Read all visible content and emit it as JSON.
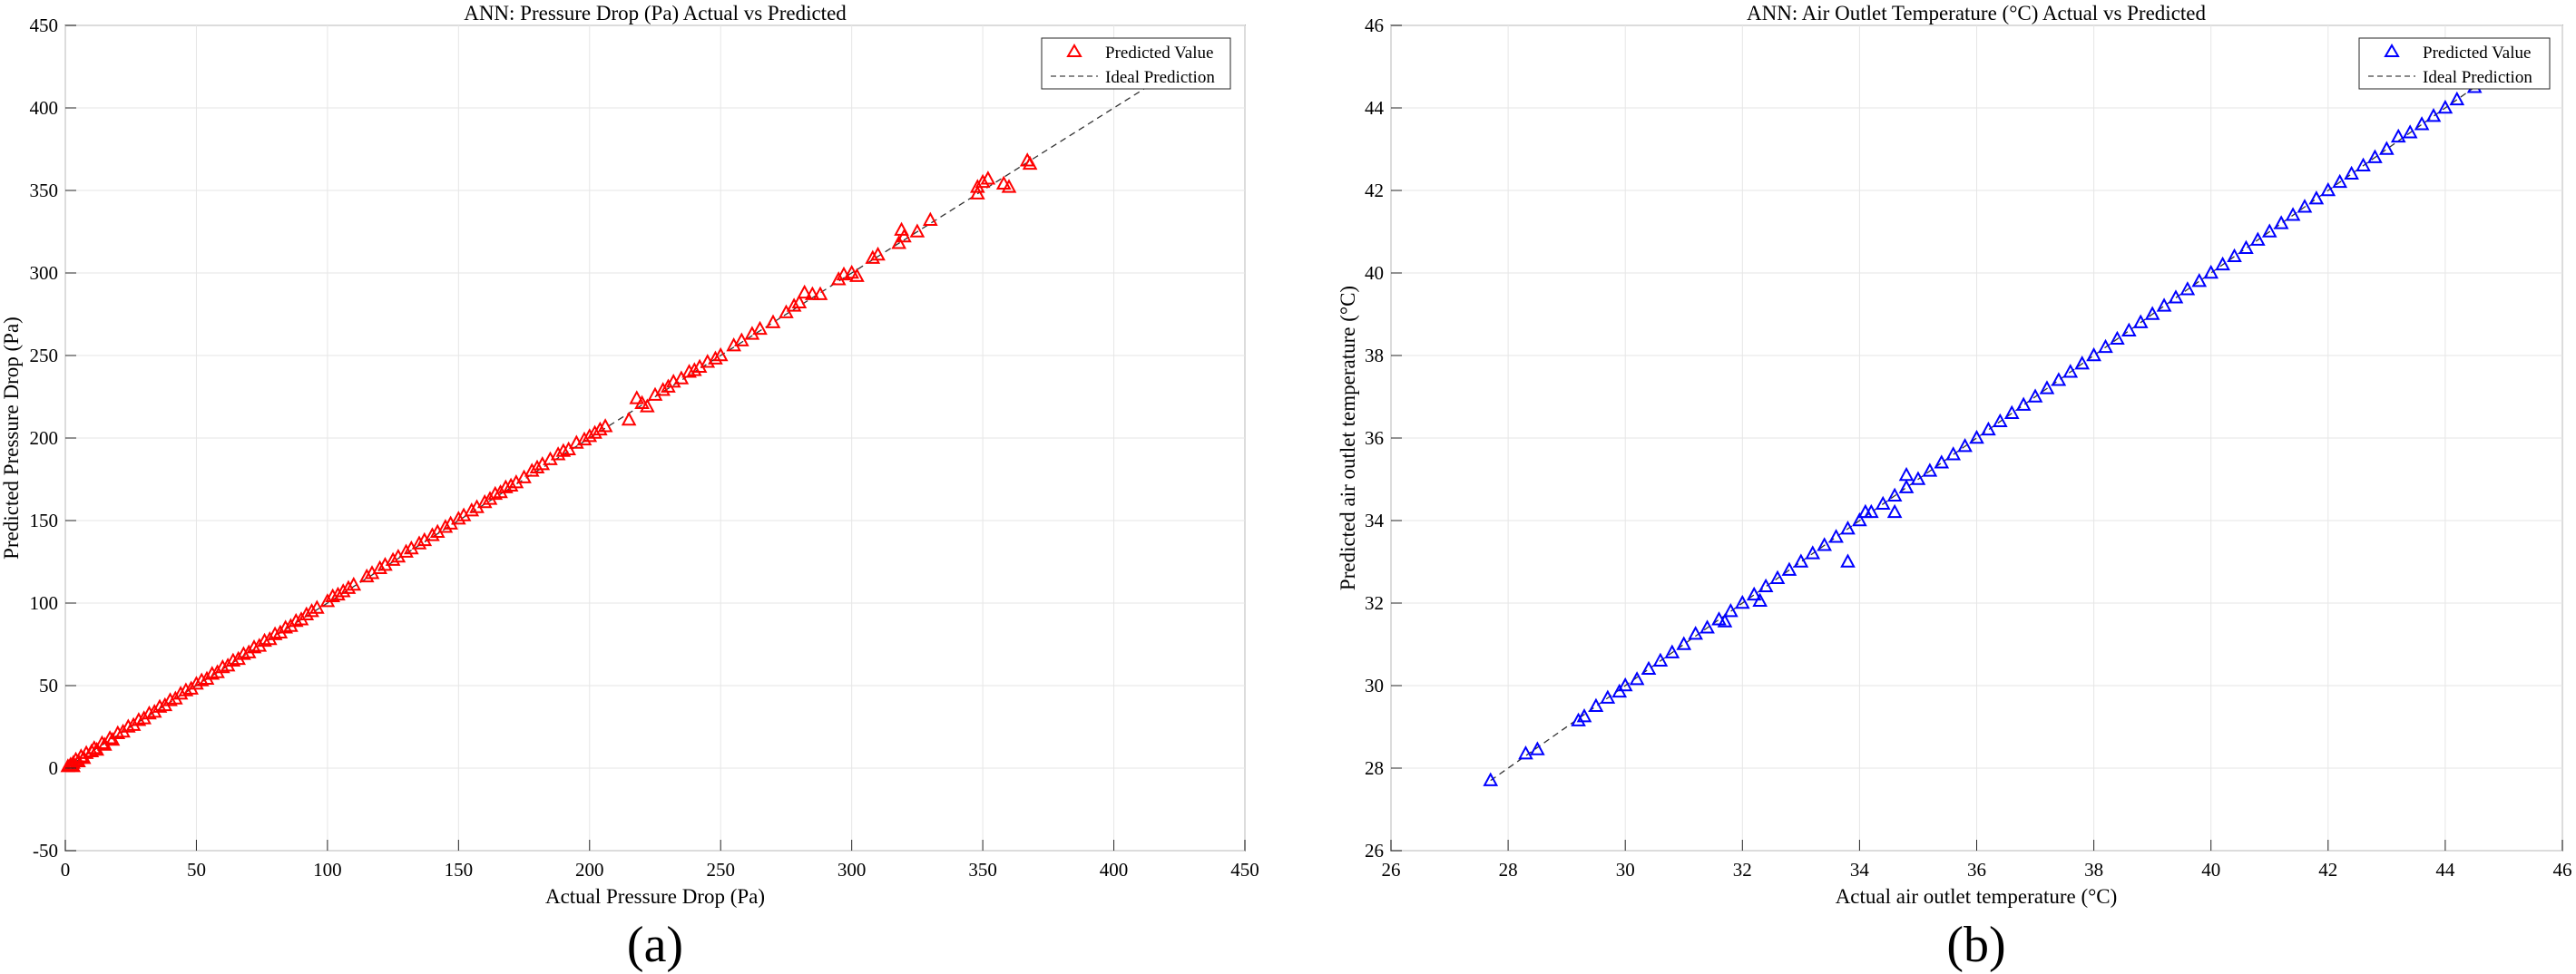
{
  "chart_data": [
    {
      "type": "scatter",
      "title": "ANN: Pressure Drop (Pa) Actual vs Predicted",
      "xlabel": "Actual Pressure Drop (Pa)",
      "ylabel": "Predicted Pressure Drop (Pa)",
      "xlim": [
        0,
        450
      ],
      "ylim": [
        -50,
        450
      ],
      "xticks": [
        0,
        50,
        100,
        150,
        200,
        250,
        300,
        350,
        400,
        450
      ],
      "yticks": [
        -50,
        0,
        50,
        100,
        150,
        200,
        250,
        300,
        350,
        400,
        450
      ],
      "grid": true,
      "legend_position": "top-right",
      "legend": [
        "Predicted Value",
        "Ideal Prediction"
      ],
      "panel_label": "(a)",
      "marker_color": "#ff0000",
      "series": [
        {
          "name": "Predicted Value",
          "marker": "triangle",
          "points": [
            [
              1,
              1
            ],
            [
              2,
              2
            ],
            [
              3,
              3
            ],
            [
              3,
              1
            ],
            [
              4,
              5
            ],
            [
              5,
              4
            ],
            [
              6,
              7
            ],
            [
              7,
              6
            ],
            [
              8,
              9
            ],
            [
              10,
              10
            ],
            [
              11,
              12
            ],
            [
              12,
              11
            ],
            [
              14,
              15
            ],
            [
              15,
              14
            ],
            [
              17,
              18
            ],
            [
              18,
              17
            ],
            [
              20,
              21
            ],
            [
              22,
              22
            ],
            [
              24,
              25
            ],
            [
              26,
              26
            ],
            [
              28,
              29
            ],
            [
              30,
              30
            ],
            [
              32,
              33
            ],
            [
              34,
              34
            ],
            [
              36,
              37
            ],
            [
              38,
              38
            ],
            [
              40,
              41
            ],
            [
              42,
              42
            ],
            [
              44,
              45
            ],
            [
              46,
              47
            ],
            [
              48,
              48
            ],
            [
              50,
              51
            ],
            [
              52,
              53
            ],
            [
              54,
              54
            ],
            [
              56,
              57
            ],
            [
              58,
              58
            ],
            [
              60,
              61
            ],
            [
              62,
              62
            ],
            [
              64,
              65
            ],
            [
              66,
              66
            ],
            [
              68,
              69
            ],
            [
              70,
              70
            ],
            [
              72,
              73
            ],
            [
              74,
              74
            ],
            [
              76,
              77
            ],
            [
              78,
              78
            ],
            [
              80,
              81
            ],
            [
              82,
              82
            ],
            [
              84,
              85
            ],
            [
              86,
              86
            ],
            [
              88,
              89
            ],
            [
              90,
              90
            ],
            [
              92,
              93
            ],
            [
              94,
              95
            ],
            [
              96,
              97
            ],
            [
              100,
              101
            ],
            [
              102,
              104
            ],
            [
              104,
              105
            ],
            [
              106,
              107
            ],
            [
              108,
              109
            ],
            [
              110,
              111
            ],
            [
              115,
              116
            ],
            [
              117,
              118
            ],
            [
              120,
              121
            ],
            [
              122,
              123
            ],
            [
              125,
              126
            ],
            [
              127,
              128
            ],
            [
              130,
              131
            ],
            [
              132,
              133
            ],
            [
              135,
              136
            ],
            [
              137,
              138
            ],
            [
              140,
              141
            ],
            [
              142,
              143
            ],
            [
              145,
              146
            ],
            [
              147,
              148
            ],
            [
              150,
              151
            ],
            [
              152,
              153
            ],
            [
              155,
              156
            ],
            [
              157,
              158
            ],
            [
              160,
              161
            ],
            [
              162,
              163
            ],
            [
              164,
              166
            ],
            [
              166,
              167
            ],
            [
              168,
              170
            ],
            [
              170,
              171
            ],
            [
              172,
              173
            ],
            [
              175,
              176
            ],
            [
              178,
              180
            ],
            [
              180,
              182
            ],
            [
              182,
              184
            ],
            [
              185,
              187
            ],
            [
              188,
              190
            ],
            [
              190,
              192
            ],
            [
              192,
              193
            ],
            [
              195,
              197
            ],
            [
              198,
              199
            ],
            [
              200,
              201
            ],
            [
              202,
              203
            ],
            [
              204,
              205
            ],
            [
              206,
              207
            ],
            [
              215,
              211
            ],
            [
              218,
              224
            ],
            [
              220,
              221
            ],
            [
              222,
              219
            ],
            [
              225,
              226
            ],
            [
              228,
              229
            ],
            [
              230,
              231
            ],
            [
              232,
              234
            ],
            [
              235,
              236
            ],
            [
              238,
              240
            ],
            [
              240,
              241
            ],
            [
              242,
              243
            ],
            [
              245,
              246
            ],
            [
              248,
              248
            ],
            [
              250,
              250
            ],
            [
              255,
              256
            ],
            [
              258,
              259
            ],
            [
              262,
              263
            ],
            [
              265,
              266
            ],
            [
              270,
              270
            ],
            [
              275,
              276
            ],
            [
              278,
              280
            ],
            [
              280,
              282
            ],
            [
              282,
              288
            ],
            [
              285,
              287
            ],
            [
              288,
              287
            ],
            [
              295,
              296
            ],
            [
              297,
              299
            ],
            [
              300,
              300
            ],
            [
              302,
              298
            ],
            [
              308,
              309
            ],
            [
              310,
              311
            ],
            [
              318,
              318
            ],
            [
              319,
              326
            ],
            [
              320,
              322
            ],
            [
              325,
              325
            ],
            [
              330,
              332
            ],
            [
              348,
              348
            ],
            [
              348,
              352
            ],
            [
              350,
              355
            ],
            [
              352,
              357
            ],
            [
              358,
              354
            ],
            [
              360,
              352
            ],
            [
              367,
              368
            ],
            [
              368,
              366
            ],
            [
              415,
              415
            ]
          ]
        },
        {
          "name": "Ideal Prediction",
          "line": "dashed",
          "points": [
            [
              0,
              0
            ],
            [
              420,
              420
            ]
          ]
        }
      ]
    },
    {
      "type": "scatter",
      "title": "ANN: Air Outlet Temperature (°C) Actual vs Predicted",
      "xlabel": "Actual air outlet temperature (°C)",
      "ylabel": "Predicted air outlet temperature (°C)",
      "xlim": [
        26,
        46
      ],
      "ylim": [
        26,
        46
      ],
      "xticks": [
        26,
        28,
        30,
        32,
        34,
        36,
        38,
        40,
        42,
        44,
        46
      ],
      "yticks": [
        26,
        28,
        30,
        32,
        34,
        36,
        38,
        40,
        42,
        44,
        46
      ],
      "grid": true,
      "legend_position": "top-right",
      "legend": [
        "Predicted Value",
        "Ideal Prediction"
      ],
      "panel_label": "(b)",
      "marker_color": "#0000ff",
      "series": [
        {
          "name": "Predicted Value",
          "marker": "triangle",
          "points": [
            [
              27.7,
              27.7
            ],
            [
              28.3,
              28.35
            ],
            [
              28.5,
              28.45
            ],
            [
              29.2,
              29.15
            ],
            [
              29.3,
              29.25
            ],
            [
              29.5,
              29.5
            ],
            [
              29.7,
              29.7
            ],
            [
              29.9,
              29.85
            ],
            [
              30.0,
              30.0
            ],
            [
              30.2,
              30.15
            ],
            [
              30.4,
              30.4
            ],
            [
              30.6,
              30.6
            ],
            [
              30.8,
              30.8
            ],
            [
              31.0,
              31.0
            ],
            [
              31.2,
              31.25
            ],
            [
              31.4,
              31.4
            ],
            [
              31.6,
              31.6
            ],
            [
              31.7,
              31.55
            ],
            [
              31.8,
              31.8
            ],
            [
              32.0,
              32.0
            ],
            [
              32.2,
              32.2
            ],
            [
              32.3,
              32.05
            ],
            [
              32.4,
              32.4
            ],
            [
              32.6,
              32.6
            ],
            [
              32.8,
              32.8
            ],
            [
              33.0,
              33.0
            ],
            [
              33.2,
              33.2
            ],
            [
              33.4,
              33.4
            ],
            [
              33.6,
              33.6
            ],
            [
              33.8,
              33.0
            ],
            [
              33.8,
              33.8
            ],
            [
              34.0,
              34.0
            ],
            [
              34.1,
              34.2
            ],
            [
              34.2,
              34.2
            ],
            [
              34.4,
              34.4
            ],
            [
              34.6,
              34.2
            ],
            [
              34.6,
              34.6
            ],
            [
              34.8,
              35.1
            ],
            [
              34.8,
              34.8
            ],
            [
              35.0,
              35.0
            ],
            [
              35.2,
              35.2
            ],
            [
              35.4,
              35.4
            ],
            [
              35.6,
              35.6
            ],
            [
              35.8,
              35.8
            ],
            [
              36.0,
              36.0
            ],
            [
              36.2,
              36.2
            ],
            [
              36.4,
              36.4
            ],
            [
              36.6,
              36.6
            ],
            [
              36.8,
              36.8
            ],
            [
              37.0,
              37.0
            ],
            [
              37.2,
              37.2
            ],
            [
              37.4,
              37.4
            ],
            [
              37.6,
              37.6
            ],
            [
              37.8,
              37.8
            ],
            [
              38.0,
              38.0
            ],
            [
              38.2,
              38.2
            ],
            [
              38.4,
              38.4
            ],
            [
              38.6,
              38.6
            ],
            [
              38.8,
              38.8
            ],
            [
              39.0,
              39.0
            ],
            [
              39.2,
              39.2
            ],
            [
              39.4,
              39.4
            ],
            [
              39.6,
              39.6
            ],
            [
              39.8,
              39.8
            ],
            [
              40.0,
              40.0
            ],
            [
              40.2,
              40.2
            ],
            [
              40.4,
              40.4
            ],
            [
              40.6,
              40.6
            ],
            [
              40.8,
              40.8
            ],
            [
              41.0,
              41.0
            ],
            [
              41.2,
              41.2
            ],
            [
              41.4,
              41.4
            ],
            [
              41.6,
              41.6
            ],
            [
              41.8,
              41.8
            ],
            [
              42.0,
              42.0
            ],
            [
              42.2,
              42.2
            ],
            [
              42.4,
              42.4
            ],
            [
              42.6,
              42.6
            ],
            [
              42.8,
              42.8
            ],
            [
              43.0,
              43.0
            ],
            [
              43.2,
              43.3
            ],
            [
              43.4,
              43.4
            ],
            [
              43.6,
              43.6
            ],
            [
              43.8,
              43.8
            ],
            [
              44.0,
              44.0
            ],
            [
              44.2,
              44.2
            ],
            [
              44.5,
              44.5
            ],
            [
              44.7,
              44.6
            ]
          ]
        },
        {
          "name": "Ideal Prediction",
          "line": "dashed",
          "points": [
            [
              27.7,
              27.7
            ],
            [
              45.0,
              45.0
            ]
          ]
        }
      ]
    }
  ]
}
